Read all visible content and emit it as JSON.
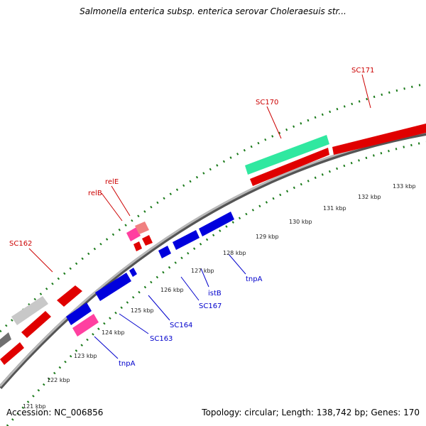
{
  "title": "Salmonella enterica subsp. enterica serovar Choleraesuis str...",
  "footer": {
    "accession": "Accession: NC_006856",
    "summary": "Topology: circular; Length: 138,742 bp; Genes: 170"
  },
  "colors": {
    "backbone": "#7a7a7a",
    "forward_gene": "#e00000",
    "reverse_gene": "#0000dd",
    "tick": "#1a7a1a",
    "label_forward": "#cc0000",
    "label_reverse": "#0000cc",
    "highlight_teal": "#30e8a0",
    "highlight_pink": "#ff40a0",
    "highlight_grey": "#c8c8c8"
  },
  "scale_labels": [
    "121 kbp",
    "122 kbp",
    "123 kbp",
    "124 kbp",
    "125 kbp",
    "126 kbp",
    "127 kbp",
    "128 kbp",
    "129 kbp",
    "130 kbp",
    "131 kbp",
    "132 kbp",
    "133 kbp"
  ],
  "gene_labels": {
    "forward": [
      "SC162",
      "relB",
      "relE",
      "SC170",
      "SC171"
    ],
    "reverse": [
      "tnpA",
      "SC163",
      "SC164",
      "SC167",
      "istB",
      "tnpA"
    ]
  }
}
